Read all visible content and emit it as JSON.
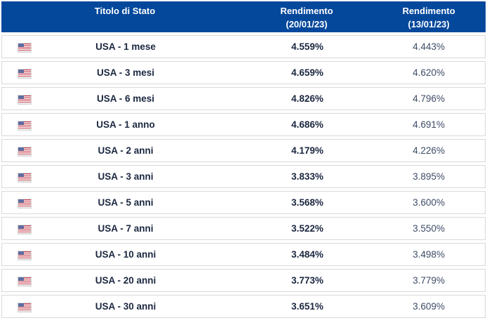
{
  "colors": {
    "header_bg": "#04489C",
    "header_text": "#FFFFFF",
    "row_border": "#D9D9D9",
    "title_text": "#1B2740",
    "secondary_value_text": "#3D4C66"
  },
  "table": {
    "header": {
      "title_col": "Titolo di Stato",
      "r1_line1": "Rendimento",
      "r1_line2": "(20/01/23)",
      "r2_line1": "Rendimento",
      "r2_line2": "(13/01/23)"
    },
    "flag_icon": "usa-flag-icon",
    "rows": [
      {
        "title": "USA - 1 mese",
        "r1": "4.559%",
        "r2": "4.443%"
      },
      {
        "title": "USA - 3 mesi",
        "r1": "4.659%",
        "r2": "4.620%"
      },
      {
        "title": "USA - 6 mesi",
        "r1": "4.826%",
        "r2": "4.796%"
      },
      {
        "title": "USA - 1 anno",
        "r1": "4.686%",
        "r2": "4.691%"
      },
      {
        "title": "USA - 2 anni",
        "r1": "4.179%",
        "r2": "4.226%"
      },
      {
        "title": "USA - 3 anni",
        "r1": "3.833%",
        "r2": "3.895%"
      },
      {
        "title": "USA - 5 anni",
        "r1": "3.568%",
        "r2": "3.600%"
      },
      {
        "title": "USA - 7 anni",
        "r1": "3.522%",
        "r2": "3.550%"
      },
      {
        "title": "USA - 10 anni",
        "r1": "3.484%",
        "r2": "3.498%"
      },
      {
        "title": "USA - 20 anni",
        "r1": "3.773%",
        "r2": "3.779%"
      },
      {
        "title": "USA - 30 anni",
        "r1": "3.651%",
        "r2": "3.609%"
      }
    ]
  }
}
